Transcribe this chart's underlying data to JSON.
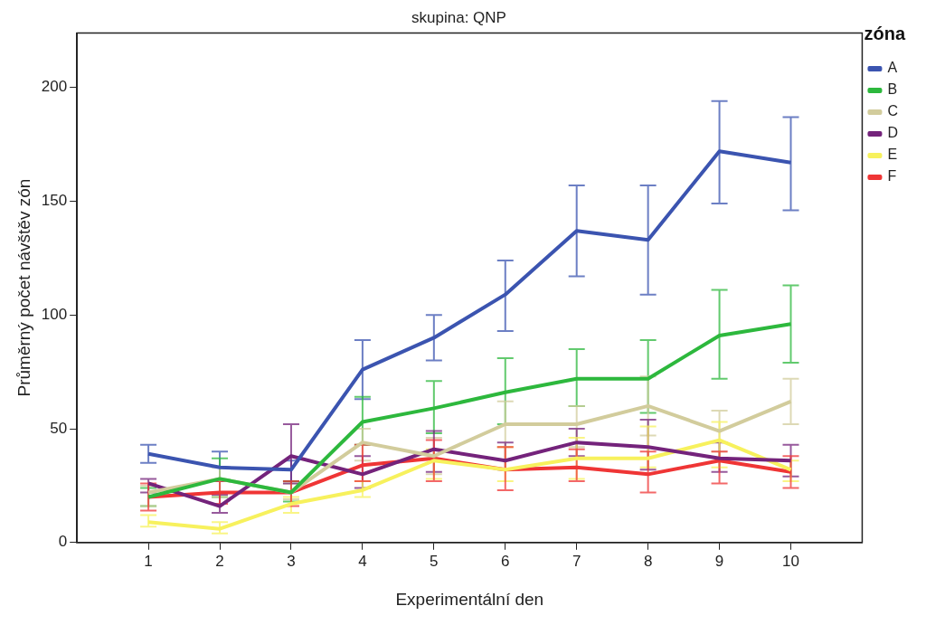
{
  "chart_data": {
    "type": "line",
    "title": "skupina: QNP",
    "xlabel": "Experimentální den",
    "ylabel": "Průměrný počet návštěv zón",
    "legend_title": "zóna",
    "legend": "right",
    "grid": false,
    "marker": "none",
    "line_style": "solid",
    "x": [
      1,
      2,
      3,
      4,
      5,
      6,
      7,
      8,
      9,
      10
    ],
    "xlim": [
      0,
      11
    ],
    "xticks": [
      1,
      2,
      3,
      4,
      5,
      6,
      7,
      8,
      9,
      10
    ],
    "ylim": [
      0,
      224
    ],
    "yticks": [
      0,
      50,
      100,
      150,
      200
    ],
    "series": [
      {
        "name": "A",
        "color": "#3b54b0",
        "values": [
          39,
          33,
          32,
          76,
          90,
          109,
          137,
          133,
          172,
          167
        ],
        "errors": [
          [
            35,
            43
          ],
          [
            27,
            40
          ],
          [
            27,
            36
          ],
          [
            63,
            89
          ],
          [
            80,
            100
          ],
          [
            93,
            124
          ],
          [
            117,
            157
          ],
          [
            109,
            157
          ],
          [
            149,
            194
          ],
          [
            146,
            187
          ]
        ]
      },
      {
        "name": "B",
        "color": "#2db83d",
        "values": [
          20,
          28,
          22,
          53,
          59,
          66,
          72,
          72,
          91,
          96
        ],
        "errors": [
          [
            16,
            24
          ],
          [
            20,
            37
          ],
          [
            18,
            27
          ],
          [
            43,
            64
          ],
          [
            48,
            71
          ],
          [
            52,
            81
          ],
          [
            60,
            85
          ],
          [
            57,
            89
          ],
          [
            72,
            111
          ],
          [
            79,
            113
          ]
        ]
      },
      {
        "name": "C",
        "color": "#d2cc9c",
        "values": [
          22,
          28,
          22,
          44,
          38,
          52,
          52,
          60,
          49,
          62
        ],
        "errors": [
          [
            16,
            25
          ],
          [
            20,
            33
          ],
          [
            19,
            26
          ],
          [
            36,
            50
          ],
          [
            30,
            46
          ],
          [
            42,
            62
          ],
          [
            42,
            60
          ],
          [
            47,
            73
          ],
          [
            40,
            58
          ],
          [
            52,
            72
          ]
        ]
      },
      {
        "name": "D",
        "color": "#74237b",
        "values": [
          26,
          16,
          38,
          30,
          41,
          36,
          44,
          42,
          37,
          36
        ],
        "errors": [
          [
            22,
            28
          ],
          [
            13,
            21
          ],
          [
            26,
            52
          ],
          [
            24,
            38
          ],
          [
            31,
            49
          ],
          [
            32,
            44
          ],
          [
            38,
            50
          ],
          [
            32,
            54
          ],
          [
            31,
            44
          ],
          [
            29,
            43
          ]
        ]
      },
      {
        "name": "E",
        "color": "#f7f15d",
        "values": [
          9,
          6,
          17,
          23,
          36,
          32,
          37,
          37,
          45,
          32
        ],
        "errors": [
          [
            7,
            12
          ],
          [
            4,
            9
          ],
          [
            13,
            20
          ],
          [
            20,
            27
          ],
          [
            28,
            41
          ],
          [
            27,
            42
          ],
          [
            28,
            46
          ],
          [
            33,
            51
          ],
          [
            33,
            53
          ],
          [
            27,
            36
          ]
        ]
      },
      {
        "name": "F",
        "color": "#ef3535",
        "values": [
          20,
          22,
          22,
          34,
          37,
          32,
          33,
          30,
          36,
          31
        ],
        "errors": [
          [
            14,
            26
          ],
          [
            17,
            27
          ],
          [
            16,
            27
          ],
          [
            27,
            43
          ],
          [
            27,
            45
          ],
          [
            23,
            42
          ],
          [
            27,
            41
          ],
          [
            22,
            40
          ],
          [
            26,
            40
          ],
          [
            24,
            38
          ]
        ]
      }
    ]
  }
}
